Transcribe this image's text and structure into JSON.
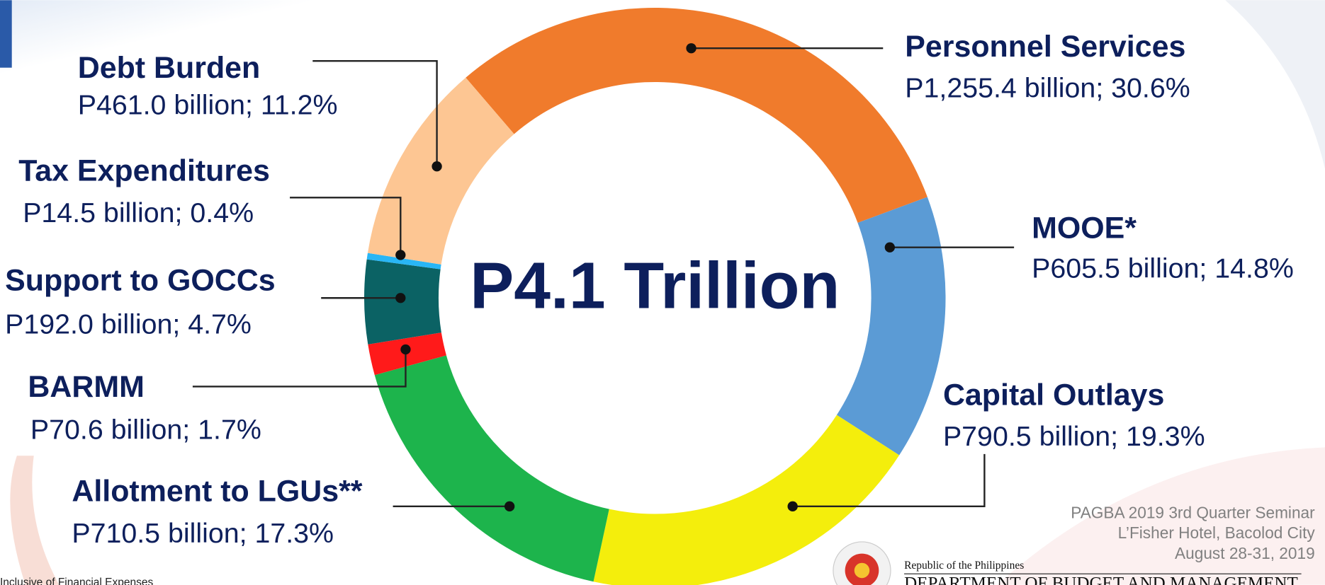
{
  "chart_data": {
    "type": "donut",
    "annotation": "P4.1 Trillion",
    "categories": [
      "Personnel Services",
      "MOOE*",
      "Capital Outlays",
      "Allotment to LGUs**",
      "BARMM",
      "Support to GOCCs",
      "Tax Expenditures",
      "Debt Burden"
    ],
    "values": [
      1255.4,
      605.5,
      790.5,
      710.5,
      70.6,
      192.0,
      14.5,
      461.0
    ],
    "value_labels": [
      "P1,255.4 billion; 30.6%",
      "P605.5 billion; 14.8%",
      "P790.5 billion; 19.3%",
      "P710.5 billion; 17.3%",
      "P70.6 billion; 1.7%",
      "P192.0 billion; 4.7%",
      "P14.5 billion; 0.4%",
      "P461.0 billion; 11.2%"
    ],
    "colors": [
      "#f07b2c",
      "#5b9bd5",
      "#f4ee0c",
      "#1db44c",
      "#ff1a1a",
      "#0b6264",
      "#29b6f6",
      "#fdc693"
    ],
    "footnote": "Inclusive of Financial Expenses",
    "event": [
      "PAGBA 2019 3rd Quarter Seminar",
      "L’Fisher Hotel, Bacolod City",
      "August 28-31, 2019"
    ],
    "agency": {
      "country": "Republic of the Philippines",
      "name": "DEPARTMENT OF BUDGET AND MANAGEMENT"
    }
  }
}
